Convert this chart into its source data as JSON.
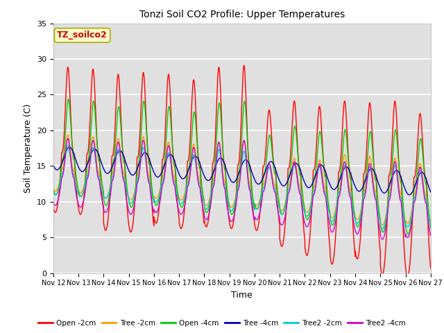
{
  "title": "Tonzi Soil CO2 Profile: Upper Temperatures",
  "xlabel": "Time",
  "ylabel": "Soil Temperature (C)",
  "ylim": [
    0,
    35
  ],
  "xlim": [
    0,
    15
  ],
  "plot_bg_color": "#e0e0e0",
  "fig_bg_color": "#ffffff",
  "series": {
    "Open -2cm": {
      "color": "#ff0000",
      "lw": 1.0
    },
    "Tree -2cm": {
      "color": "#ff9900",
      "lw": 1.0
    },
    "Open -4cm": {
      "color": "#00cc00",
      "lw": 1.0
    },
    "Tree -4cm": {
      "color": "#0000bb",
      "lw": 1.0
    },
    "Tree2 -2cm": {
      "color": "#00cccc",
      "lw": 1.0
    },
    "Tree2 -4cm": {
      "color": "#cc00cc",
      "lw": 1.0
    }
  },
  "xtick_labels": [
    "Nov 12",
    "Nov 13",
    "Nov 14",
    "Nov 15",
    "Nov 16",
    "Nov 17",
    "Nov 18",
    "Nov 19",
    "Nov 20",
    "Nov 21",
    "Nov 22",
    "Nov 23",
    "Nov 24",
    "Nov 25",
    "Nov 26",
    "Nov 27"
  ],
  "ytick_values": [
    0,
    5,
    10,
    15,
    20,
    25,
    30,
    35
  ],
  "annotation_text": "TZ_soilco2",
  "annotation_color": "#cc0000",
  "annotation_bg": "#ffffcc",
  "annotation_border": "#aaaa00",
  "figsize": [
    6.4,
    4.8
  ],
  "dpi": 100
}
